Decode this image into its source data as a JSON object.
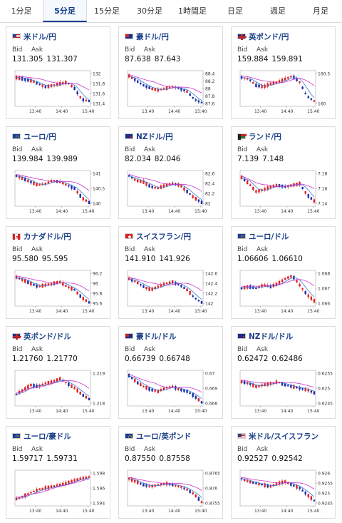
{
  "tabs": [
    {
      "label": "1分足",
      "active": false
    },
    {
      "label": "5分足",
      "active": true
    },
    {
      "label": "15分足",
      "active": false
    },
    {
      "label": "30分足",
      "active": false
    },
    {
      "label": "1時間足",
      "active": false
    },
    {
      "label": "日足",
      "active": false
    },
    {
      "label": "週足",
      "active": false
    },
    {
      "label": "月足",
      "active": false
    }
  ],
  "bid_label": "Bid",
  "ask_label": "Ask",
  "x_ticks": [
    "13:40",
    "14:40",
    "15:40"
  ],
  "colors": {
    "up": "#e02020",
    "down": "#1c2fa8",
    "ma_short": "#3a7bd5",
    "ma_long": "#cc33cc",
    "pair_text": "#1a3f8a",
    "grid": "#dddddd"
  },
  "cards": [
    {
      "pair": "米ドル/円",
      "flag": "us",
      "bid": "131.305",
      "ask": "131.307",
      "y_ticks": [
        "132",
        "131.8",
        "131.6",
        "131.4"
      ]
    },
    {
      "pair": "豪ドル/円",
      "flag": "au",
      "bid": "87.638",
      "ask": "87.643",
      "y_ticks": [
        "88.4",
        "88.2",
        "88",
        "87.8",
        "87.6"
      ]
    },
    {
      "pair": "英ポンド/円",
      "flag": "gb",
      "bid": "159.884",
      "ask": "159.891",
      "y_ticks": [
        "160.5",
        "160"
      ]
    },
    {
      "pair": "ユーロ/円",
      "flag": "eu",
      "bid": "139.984",
      "ask": "139.989",
      "y_ticks": [
        "141",
        "140.5",
        "140"
      ]
    },
    {
      "pair": "NZドル/円",
      "flag": "nz",
      "bid": "82.034",
      "ask": "82.046",
      "y_ticks": [
        "82.6",
        "82.4",
        "82.2",
        "82"
      ]
    },
    {
      "pair": "ランド/円",
      "flag": "za",
      "bid": "7.139",
      "ask": "7.148",
      "y_ticks": [
        "7.18",
        "7.16",
        "7.14"
      ]
    },
    {
      "pair": "カナダドル/円",
      "flag": "ca",
      "bid": "95.580",
      "ask": "95.595",
      "y_ticks": [
        "96.2",
        "96",
        "95.8",
        "95.6"
      ]
    },
    {
      "pair": "スイスフラン/円",
      "flag": "ch",
      "bid": "141.910",
      "ask": "141.926",
      "y_ticks": [
        "142.6",
        "142.4",
        "142.2",
        "142"
      ]
    },
    {
      "pair": "ユーロ/ドル",
      "flag": "eu",
      "bid": "1.06606",
      "ask": "1.06610",
      "y_ticks": [
        "1.068",
        "1.067",
        "1.066"
      ]
    },
    {
      "pair": "英ポンド/ドル",
      "flag": "gb",
      "bid": "1.21760",
      "ask": "1.21770",
      "y_ticks": [
        "1.219",
        "1.218"
      ]
    },
    {
      "pair": "豪ドル/ドル",
      "flag": "au",
      "bid": "0.66739",
      "ask": "0.66748",
      "y_ticks": [
        "0.67",
        "0.669",
        "0.668"
      ]
    },
    {
      "pair": "NZドル/ドル",
      "flag": "nz",
      "bid": "0.62472",
      "ask": "0.62486",
      "y_ticks": [
        "0.6255",
        "0.625",
        "0.6245"
      ]
    },
    {
      "pair": "ユーロ/豪ドル",
      "flag": "eu",
      "bid": "1.59717",
      "ask": "1.59731",
      "y_ticks": [
        "1.598",
        "1.596",
        "1.594"
      ]
    },
    {
      "pair": "ユーロ/英ポンド",
      "flag": "eu",
      "bid": "0.87550",
      "ask": "0.87558",
      "y_ticks": [
        "0.8765",
        "0.876",
        "0.8755"
      ]
    },
    {
      "pair": "米ドル/スイスフラン",
      "flag": "us",
      "bid": "0.92527",
      "ask": "0.92542",
      "y_ticks": [
        "0.926",
        "0.9255",
        "0.925",
        "0.9245"
      ]
    }
  ]
}
